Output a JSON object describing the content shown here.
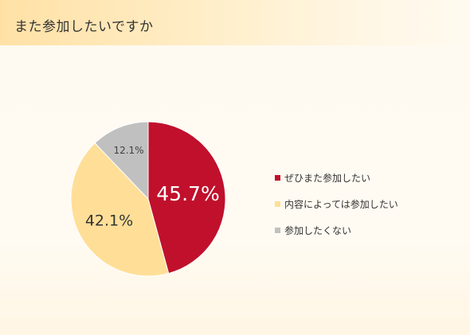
{
  "header": {
    "title": "また参加したいですか"
  },
  "chart_data": {
    "type": "pie",
    "title": "",
    "start_angle_deg": 0,
    "direction": "clockwise",
    "slices": [
      {
        "label": "ぜひまた参加したい",
        "value": 45.7,
        "display": "45.7%",
        "color": "#c0102c",
        "label_color": "#ffffff",
        "label_size": "large"
      },
      {
        "label": "内容によっては参加したい",
        "value": 42.1,
        "display": "42.1%",
        "color": "#ffdf97",
        "label_color": "#333333",
        "label_size": "medium"
      },
      {
        "label": "参加したくない",
        "value": 12.1,
        "display": "12.1%",
        "color": "#c0c0c0",
        "label_color": "#404040",
        "label_size": "small"
      }
    ],
    "legend_position": "right"
  }
}
